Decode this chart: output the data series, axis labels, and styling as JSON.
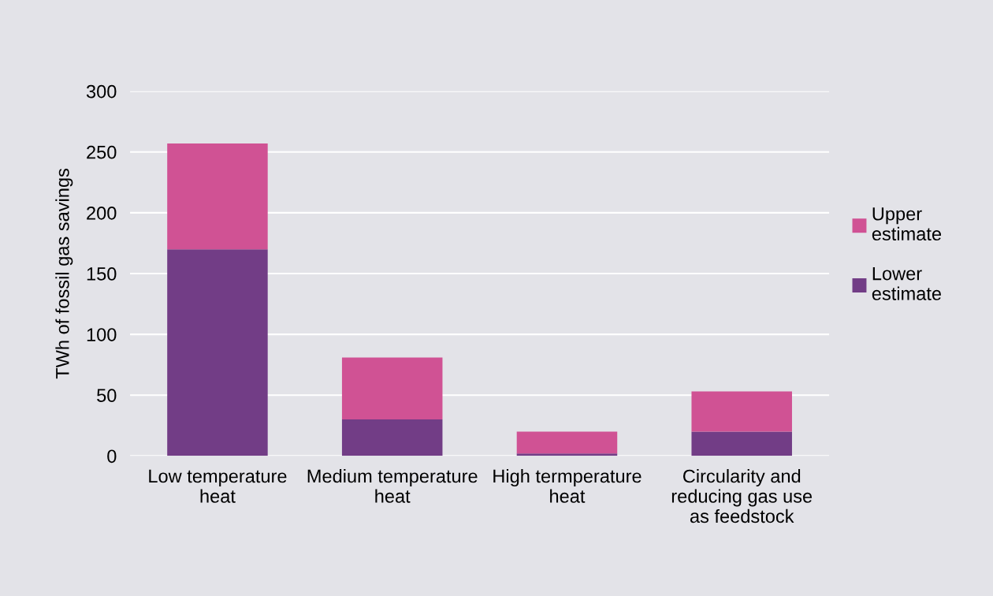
{
  "chart_data": {
    "type": "bar",
    "stacked": true,
    "ylabel": "TWh of fossil gas savings",
    "categories": [
      "Low temperature heat",
      "Medium temperature heat",
      "High termperature heat",
      "Circularity and reducing gas use as feedstock"
    ],
    "series": [
      {
        "name": "Lower estimate",
        "color": "#723d86",
        "values": [
          170,
          30,
          2,
          20
        ]
      },
      {
        "name": "Upper estimate",
        "color": "#d05294",
        "values": [
          87,
          51,
          18,
          33
        ]
      }
    ],
    "ylim": [
      0,
      300
    ],
    "yticks": [
      0,
      50,
      100,
      150,
      200,
      250,
      300
    ],
    "grid": "y",
    "legend": "right"
  }
}
